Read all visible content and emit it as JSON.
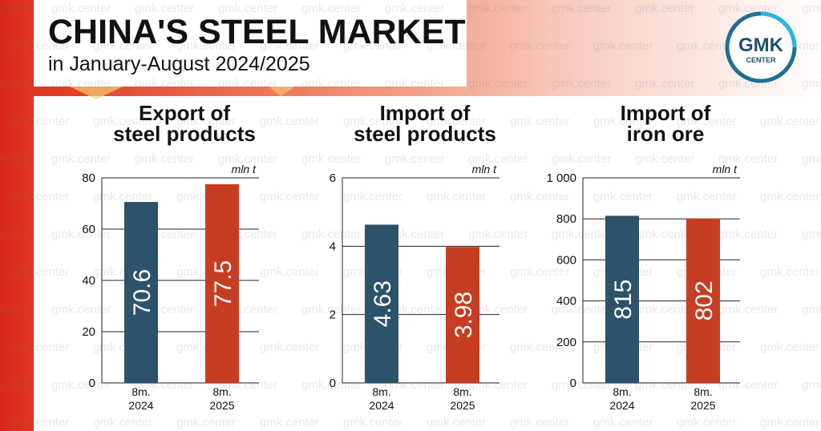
{
  "header": {
    "title": "CHINA'S STEEL MARKET",
    "subtitle": "in January-August 2024/2025"
  },
  "logo": {
    "line1": "GMK",
    "line2": "CENTER"
  },
  "watermark_text": "gmk.center",
  "colors": {
    "bar_2024": "#2d526b",
    "bar_2025": "#c63d22",
    "accent_red": "#d8281c"
  },
  "charts": [
    {
      "title_line1": "Export of",
      "title_line2": "steel products"
    },
    {
      "title_line1": "Import of",
      "title_line2": "steel products"
    },
    {
      "title_line1": "Import of",
      "title_line2": "iron ore"
    }
  ],
  "chart_data": [
    {
      "type": "bar",
      "title": "Export of steel products",
      "unit": "mln t",
      "categories": [
        [
          "8m.",
          "2024"
        ],
        [
          "8m.",
          "2025"
        ]
      ],
      "values": [
        70.6,
        77.5
      ],
      "value_labels": [
        "70.6",
        "77.5"
      ],
      "yticks": [
        "0",
        "20",
        "40",
        "60",
        "80"
      ],
      "ylim": [
        0,
        80
      ],
      "grid": true
    },
    {
      "type": "bar",
      "title": "Import of steel products",
      "unit": "mln t",
      "categories": [
        [
          "8m.",
          "2024"
        ],
        [
          "8m.",
          "2025"
        ]
      ],
      "values": [
        4.63,
        3.98
      ],
      "value_labels": [
        "4.63",
        "3.98"
      ],
      "yticks": [
        "0",
        "2",
        "4",
        "6"
      ],
      "ylim": [
        0,
        6
      ],
      "grid": true
    },
    {
      "type": "bar",
      "title": "Import of iron ore",
      "unit": "mln t",
      "categories": [
        [
          "8m.",
          "2024"
        ],
        [
          "8m.",
          "2025"
        ]
      ],
      "values": [
        815,
        802
      ],
      "value_labels": [
        "815",
        "802"
      ],
      "yticks": [
        "0",
        "200",
        "400",
        "600",
        "800",
        "1 000"
      ],
      "ylim": [
        0,
        1000
      ],
      "grid": true
    }
  ]
}
